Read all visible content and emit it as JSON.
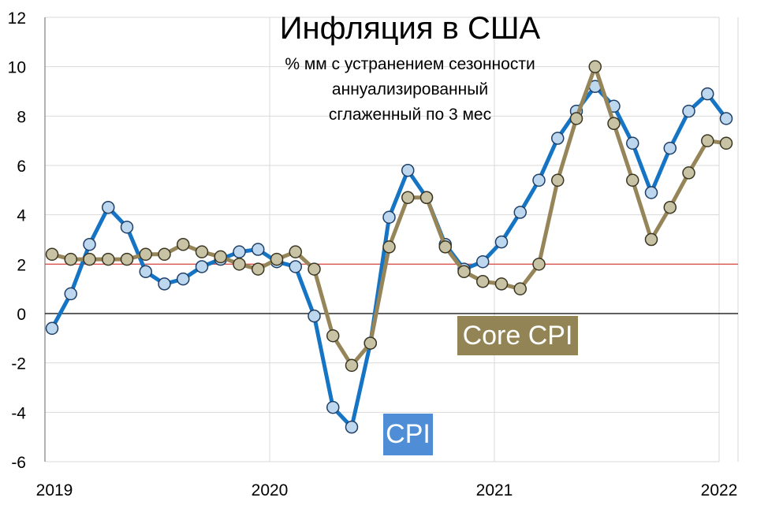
{
  "chart_data": {
    "type": "line",
    "title": "Инфляция в США",
    "subtitle_lines": [
      "% мм с устранением сезонности",
      "аннуализированный",
      "сглаженный по 3 мес"
    ],
    "x_start": "2019-01",
    "x_ticks": [
      "2019",
      "2020",
      "2021",
      "2022"
    ],
    "y_ticks": [
      "12",
      "10",
      "8",
      "6",
      "4",
      "2",
      "0",
      "-2",
      "-4",
      "-6"
    ],
    "ylim": [
      -6,
      12
    ],
    "reference_line": 2,
    "grid": true,
    "series": [
      {
        "name": "CPI",
        "color": "#1574c4",
        "marker_color": "#bdd7ee",
        "values": [
          -0.6,
          0.8,
          2.8,
          4.3,
          3.5,
          1.7,
          1.2,
          1.4,
          1.9,
          2.2,
          2.5,
          2.6,
          2.1,
          1.9,
          -0.1,
          -3.8,
          -4.6,
          -1.2,
          3.9,
          5.8,
          4.7,
          2.8,
          1.8,
          2.1,
          2.9,
          4.1,
          5.4,
          7.1,
          8.2,
          9.2,
          8.4,
          6.9,
          4.9,
          6.7,
          8.2,
          8.9,
          7.9
        ]
      },
      {
        "name": "Core CPI",
        "color": "#968559",
        "marker_color": "#c8c3a5",
        "values": [
          2.4,
          2.2,
          2.2,
          2.2,
          2.2,
          2.4,
          2.4,
          2.8,
          2.5,
          2.3,
          2.0,
          1.8,
          2.2,
          2.5,
          1.8,
          -0.9,
          -2.1,
          -1.2,
          2.7,
          4.7,
          4.7,
          2.7,
          1.7,
          1.3,
          1.2,
          1.0,
          2.0,
          5.4,
          7.9,
          10.0,
          7.7,
          5.4,
          3.0,
          4.3,
          5.7,
          7.0,
          6.9
        ]
      }
    ],
    "label_colors": {
      "CPI": "#4f8ed6",
      "Core CPI": "#928454"
    }
  }
}
